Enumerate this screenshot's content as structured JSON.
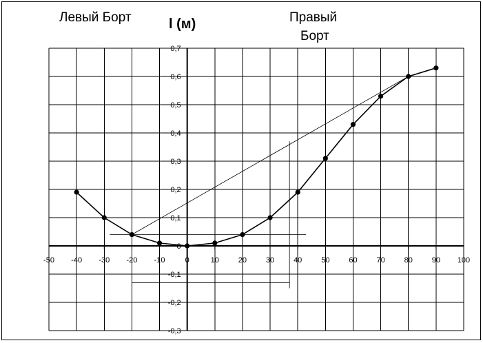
{
  "chart_data": {
    "type": "line",
    "title": "",
    "left_label": "Левый Борт",
    "ylabel": "l (м)",
    "right_label_line1": "Правый",
    "right_label_line2": "Борт",
    "xlim": [
      -50,
      100
    ],
    "ylim": [
      -0.3,
      0.7
    ],
    "x_ticks": [
      "-50",
      "-40",
      "-30",
      "-20",
      "-10",
      "0",
      "10",
      "20",
      "30",
      "40",
      "50",
      "60",
      "70",
      "80",
      "90",
      "100"
    ],
    "y_ticks": [
      "-0,3",
      "-0,2",
      "-0,1",
      "0",
      "0,1",
      "0,2",
      "0,3",
      "0,4",
      "0,5",
      "0,6",
      "0,7"
    ],
    "grid": true,
    "series": [
      {
        "x": [
          -40,
          -30,
          -20,
          -10,
          0,
          10,
          20,
          30,
          40,
          50,
          60,
          70,
          80,
          90
        ],
        "y": [
          0.19,
          0.1,
          0.04,
          0.01,
          0.0,
          0.01,
          0.04,
          0.1,
          0.19,
          0.31,
          0.43,
          0.53,
          0.6,
          0.63
        ]
      }
    ],
    "construction_lines": [
      {
        "from": [
          -20,
          0.04
        ],
        "to": [
          80,
          0.6
        ]
      },
      {
        "from": [
          -28,
          0.04
        ],
        "to": [
          43,
          0.04
        ]
      },
      {
        "from": [
          -20,
          0.04
        ],
        "to": [
          -20,
          -0.18
        ]
      },
      {
        "from": [
          37,
          0.37
        ],
        "to": [
          37,
          -0.15
        ]
      },
      {
        "from": [
          -20,
          -0.13
        ],
        "to": [
          37,
          -0.13
        ]
      }
    ]
  }
}
